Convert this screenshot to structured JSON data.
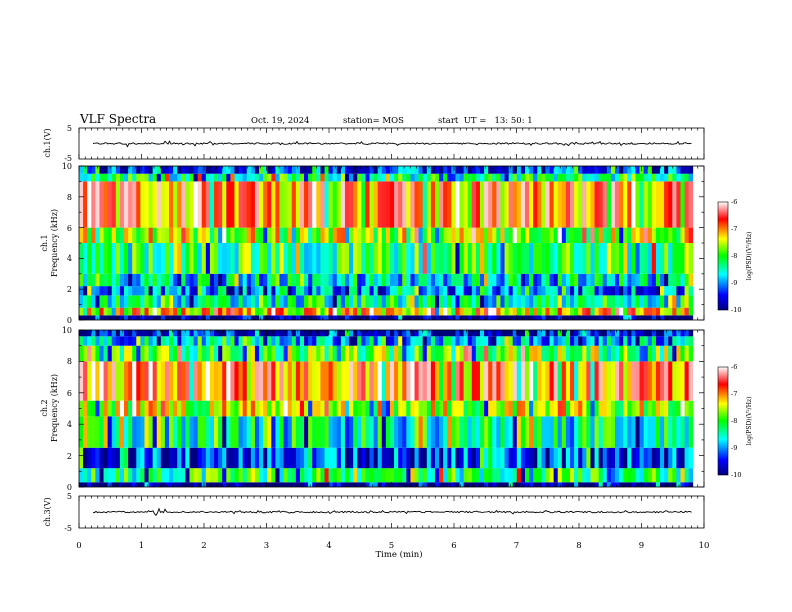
{
  "header": {
    "title": "VLF Spectra",
    "date": "Oct. 19, 2024",
    "station": "station= MOS",
    "start": "start  UT =   13: 50: 1"
  },
  "chart_data": [
    {
      "type": "line",
      "name": "ch.1 waveform",
      "ylabel": "ch.1(V)",
      "ylim": [
        -5,
        5
      ],
      "yticks": [
        "5",
        "-5"
      ],
      "xlim": [
        0,
        10
      ],
      "baseline": 0,
      "data_end_min": 9.82
    },
    {
      "type": "heatmap",
      "name": "ch.1 spectrogram",
      "ylabel_channel": "ch.1",
      "ylabel": "Frequency (kHz)",
      "ylim": [
        0,
        10
      ],
      "yticks": [
        "0",
        "2",
        "4",
        "6",
        "8",
        "10"
      ],
      "xlim": [
        0,
        10
      ],
      "data_end_min": 9.82,
      "colorbar": {
        "label": "log(PSD)(V²/Hz)",
        "range": [
          -10,
          -6
        ],
        "ticks": [
          "-6",
          "-7",
          "-8",
          "-9",
          "-10"
        ]
      },
      "bands": [
        {
          "from": 0,
          "to": 0.3,
          "level": -10
        },
        {
          "from": 0.3,
          "to": 0.8,
          "level": -7.2
        },
        {
          "from": 0.8,
          "to": 1.6,
          "level": -8.4
        },
        {
          "from": 1.6,
          "to": 2.2,
          "level": -9.0
        },
        {
          "from": 2.2,
          "to": 3.0,
          "level": -8.6
        },
        {
          "from": 3.0,
          "to": 5.0,
          "level": -8.1
        },
        {
          "from": 5.0,
          "to": 6.0,
          "level": -7.6
        },
        {
          "from": 6.0,
          "to": 9.0,
          "level": -6.9
        },
        {
          "from": 9.0,
          "to": 9.5,
          "level": -8.2
        },
        {
          "from": 9.5,
          "to": 10,
          "level": -9.3
        }
      ]
    },
    {
      "type": "heatmap",
      "name": "ch.2 spectrogram",
      "ylabel_channel": "ch.2",
      "ylabel": "Frequency (kHz)",
      "ylim": [
        0,
        10
      ],
      "yticks": [
        "0",
        "2",
        "4",
        "6",
        "8",
        "10"
      ],
      "xlim": [
        0,
        10
      ],
      "data_end_min": 9.82,
      "colorbar": {
        "label": "log(PSD)(V²/Hz)",
        "range": [
          -10,
          -6
        ],
        "ticks": [
          "-6",
          "-7",
          "-8",
          "-9",
          "-10"
        ]
      },
      "bands": [
        {
          "from": 0,
          "to": 0.3,
          "level": -10
        },
        {
          "from": 0.3,
          "to": 1.2,
          "level": -8.2
        },
        {
          "from": 1.2,
          "to": 2.5,
          "level": -9.3
        },
        {
          "from": 2.5,
          "to": 4.5,
          "level": -8.4
        },
        {
          "from": 4.5,
          "to": 5.5,
          "level": -7.6
        },
        {
          "from": 5.5,
          "to": 8.0,
          "level": -6.9
        },
        {
          "from": 8.0,
          "to": 9.0,
          "level": -7.9
        },
        {
          "from": 9.0,
          "to": 9.6,
          "level": -8.9
        },
        {
          "from": 9.6,
          "to": 10,
          "level": -9.6
        }
      ]
    },
    {
      "type": "line",
      "name": "ch.3 waveform",
      "ylabel": "ch.3(V)",
      "ylim": [
        -5,
        5
      ],
      "yticks": [
        "5",
        "-5"
      ],
      "xlim": [
        0,
        10
      ],
      "baseline": 0,
      "data_end_min": 9.82
    }
  ],
  "x_axis": {
    "label": "Time (min)",
    "ticks": [
      "0",
      "1",
      "2",
      "3",
      "4",
      "5",
      "6",
      "7",
      "8",
      "9",
      "10"
    ]
  },
  "colors": {
    "scale": [
      "#00007f",
      "#0000ff",
      "#00ffff",
      "#00ff00",
      "#ffff00",
      "#ff0000",
      "#ffffff"
    ]
  }
}
